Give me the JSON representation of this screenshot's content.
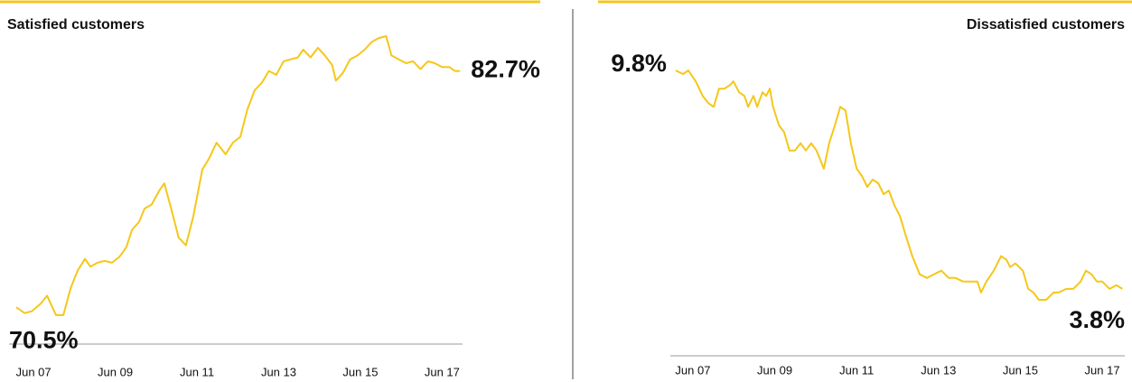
{
  "chart_data": [
    {
      "type": "line",
      "title": "Satisfied customers",
      "color": "#f5c71a",
      "x": [
        6.58,
        6.78,
        6.96,
        7.18,
        7.33,
        7.55,
        7.73,
        7.91,
        8.08,
        8.26,
        8.39,
        8.57,
        8.74,
        8.92,
        9.1,
        9.27,
        9.41,
        9.58,
        9.72,
        9.89,
        10.07,
        10.2,
        10.38,
        10.55,
        10.73,
        10.91,
        11.13,
        11.3,
        11.48,
        11.7,
        11.88,
        12.06,
        12.23,
        12.41,
        12.59,
        12.76,
        12.94,
        13.12,
        13.29,
        13.47,
        13.6,
        13.78,
        13.96,
        14.13,
        14.31,
        14.4,
        14.57,
        14.75,
        14.93,
        15.1,
        15.28,
        15.45,
        15.63,
        15.76,
        15.94,
        16.12,
        16.29,
        16.47,
        16.65,
        16.82,
        17.0,
        17.18,
        17.31,
        17.44
      ],
      "values": [
        70.5,
        70.2,
        70.3,
        70.7,
        71.1,
        70.1,
        70.1,
        71.5,
        72.4,
        73.0,
        72.6,
        72.8,
        72.9,
        72.8,
        73.1,
        73.6,
        74.5,
        74.9,
        75.6,
        75.8,
        76.5,
        76.9,
        75.5,
        74.1,
        73.7,
        75.2,
        77.6,
        78.2,
        79.0,
        78.4,
        79.0,
        79.3,
        80.7,
        81.7,
        82.1,
        82.7,
        82.5,
        83.2,
        83.3,
        83.4,
        83.8,
        83.4,
        83.9,
        83.5,
        83.0,
        82.2,
        82.6,
        83.3,
        83.5,
        83.8,
        84.2,
        84.4,
        84.5,
        83.5,
        83.3,
        83.1,
        83.2,
        82.8,
        83.2,
        83.1,
        82.9,
        82.9,
        82.7,
        82.7
      ],
      "value_labels": [
        "70.5%",
        null,
        null,
        null,
        null,
        null,
        null,
        null,
        null,
        null,
        null,
        null,
        null,
        null,
        null,
        null,
        null,
        null,
        null,
        null,
        null,
        null,
        null,
        null,
        null,
        null,
        null,
        null,
        null,
        null,
        null,
        null,
        null,
        null,
        null,
        null,
        null,
        null,
        null,
        null,
        null,
        null,
        null,
        null,
        null,
        null,
        null,
        null,
        null,
        null,
        null,
        null,
        null,
        null,
        null,
        null,
        null,
        null,
        null,
        null,
        null,
        null,
        null,
        "82.7%"
      ],
      "xlim": [
        6.4,
        17.5
      ],
      "ylim": [
        70,
        84.5
      ],
      "xticks": [
        {
          "value": 7,
          "label": "Jun 07"
        },
        {
          "value": 9,
          "label": "Jun 09"
        },
        {
          "value": 11,
          "label": "Jun 11"
        },
        {
          "value": 13,
          "label": "Jun 13"
        },
        {
          "value": 15,
          "label": "Jun 15"
        },
        {
          "value": 17,
          "label": "Jun 17"
        }
      ]
    },
    {
      "type": "line",
      "title": "Dissatisfied customers",
      "color": "#f5c71a",
      "x": [
        6.58,
        6.76,
        6.89,
        7.07,
        7.24,
        7.38,
        7.51,
        7.64,
        7.77,
        7.91,
        7.99,
        8.13,
        8.26,
        8.35,
        8.48,
        8.57,
        8.7,
        8.79,
        8.88,
        8.96,
        9.1,
        9.23,
        9.36,
        9.49,
        9.63,
        9.76,
        9.89,
        10.02,
        10.2,
        10.33,
        10.47,
        10.6,
        10.73,
        10.86,
        11.0,
        11.13,
        11.26,
        11.39,
        11.53,
        11.66,
        11.79,
        11.92,
        12.06,
        12.19,
        12.36,
        12.54,
        12.72,
        12.89,
        13.07,
        13.25,
        13.42,
        13.6,
        13.78,
        13.95,
        14.04,
        14.17,
        14.35,
        14.53,
        14.66,
        14.75,
        14.88,
        15.06,
        15.19,
        15.32,
        15.45,
        15.63,
        15.81,
        15.94,
        16.12,
        16.29,
        16.47,
        16.6,
        16.74,
        16.87,
        17.0,
        17.18,
        17.35,
        17.49
      ],
      "values": [
        9.8,
        9.7,
        9.8,
        9.5,
        9.1,
        8.9,
        8.8,
        9.3,
        9.3,
        9.4,
        9.5,
        9.2,
        9.1,
        8.8,
        9.1,
        8.8,
        9.2,
        9.1,
        9.3,
        8.8,
        8.3,
        8.1,
        7.6,
        7.6,
        7.8,
        7.6,
        7.8,
        7.6,
        7.1,
        7.8,
        8.3,
        8.8,
        8.7,
        7.8,
        7.1,
        6.9,
        6.6,
        6.8,
        6.7,
        6.4,
        6.5,
        6.1,
        5.8,
        5.3,
        4.7,
        4.2,
        4.1,
        4.2,
        4.3,
        4.1,
        4.1,
        4.0,
        4.0,
        4.0,
        3.7,
        4.0,
        4.3,
        4.7,
        4.6,
        4.4,
        4.5,
        4.3,
        3.8,
        3.7,
        3.5,
        3.5,
        3.7,
        3.7,
        3.8,
        3.8,
        4.0,
        4.3,
        4.2,
        4.0,
        4.0,
        3.8,
        3.9,
        3.8
      ],
      "value_labels": [
        "9.8%",
        null,
        null,
        null,
        null,
        null,
        null,
        null,
        null,
        null,
        null,
        null,
        null,
        null,
        null,
        null,
        null,
        null,
        null,
        null,
        null,
        null,
        null,
        null,
        null,
        null,
        null,
        null,
        null,
        null,
        null,
        null,
        null,
        null,
        null,
        null,
        null,
        null,
        null,
        null,
        null,
        null,
        null,
        null,
        null,
        null,
        null,
        null,
        null,
        null,
        null,
        null,
        null,
        null,
        null,
        null,
        null,
        null,
        null,
        null,
        null,
        null,
        null,
        null,
        null,
        null,
        null,
        null,
        null,
        null,
        null,
        null,
        null,
        null,
        null,
        null,
        null,
        "3.8%"
      ],
      "xlim": [
        6.45,
        17.55
      ],
      "ylim": [
        3.4,
        9.8
      ],
      "xticks": [
        {
          "value": 7,
          "label": "Jun 07"
        },
        {
          "value": 9,
          "label": "Jun 09"
        },
        {
          "value": 11,
          "label": "Jun 11"
        },
        {
          "value": 13,
          "label": "Jun 13"
        },
        {
          "value": 15,
          "label": "Jun 15"
        },
        {
          "value": 17,
          "label": "Jun 17"
        }
      ]
    }
  ]
}
